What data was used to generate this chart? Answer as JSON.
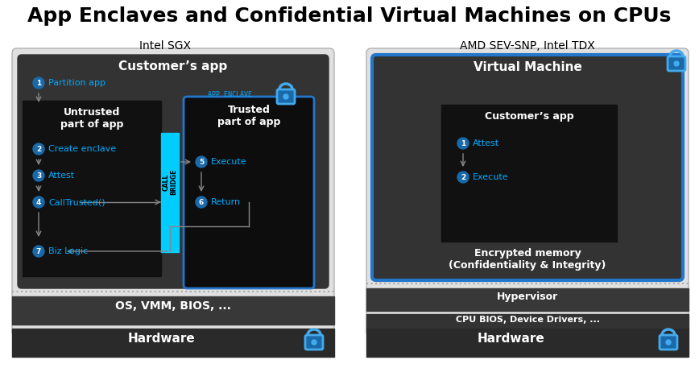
{
  "title": "App Enclaves and Confidential Virtual Machines on CPUs",
  "title_fontsize": 18,
  "bg_color": "#ffffff",
  "left_label": "Intel SGX",
  "right_label": "AMD SEV-SNP, Intel TDX",
  "colors": {
    "dark_bg": "#333333",
    "black_box": "#111111",
    "outer_bg": "#555555",
    "cyan": "#00aaff",
    "blue_border": "#2277cc",
    "white": "#ffffff",
    "medium_gray": "#444444",
    "call_bridge_cyan": "#00ccff",
    "lock_blue": "#1a6aaa",
    "lock_cyan": "#44aaee",
    "bar_dark": "#2a2a2a",
    "bar_medium": "#383838",
    "arrow_gray": "#888888",
    "dotted_gray": "#888888",
    "outer_border": "#888888"
  }
}
